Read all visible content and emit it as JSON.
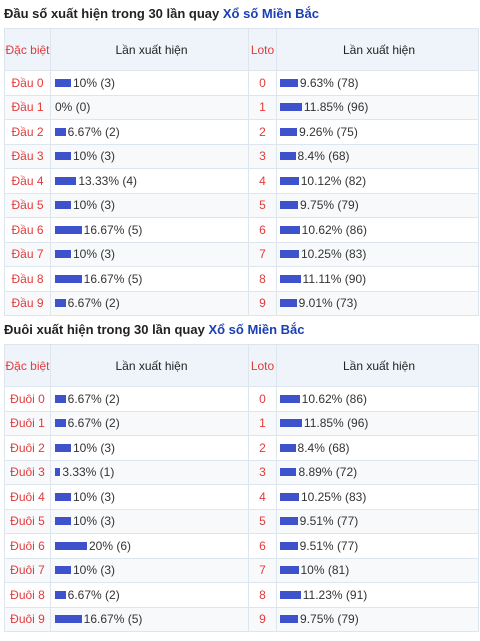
{
  "sections": [
    {
      "title_prefix": "Đầu số xuất hiện trong 30 lần quay",
      "title_link": "Xổ số Miền Bắc",
      "header": {
        "col1": "Đặc biệt",
        "col2": "Lần xuất hiện",
        "col3": "Loto",
        "col4": "Lần xuất hiện"
      },
      "rows": [
        {
          "label": "Đầu 0",
          "db_pct": 10,
          "db_text": "10% (3)",
          "loto": "0",
          "lt_pct": 9.63,
          "lt_text": "9.63% (78)"
        },
        {
          "label": "Đầu 1",
          "db_pct": 0,
          "db_text": "0% (0)",
          "loto": "1",
          "lt_pct": 11.85,
          "lt_text": "11.85% (96)"
        },
        {
          "label": "Đầu 2",
          "db_pct": 6.67,
          "db_text": "6.67% (2)",
          "loto": "2",
          "lt_pct": 9.26,
          "lt_text": "9.26% (75)"
        },
        {
          "label": "Đầu 3",
          "db_pct": 10,
          "db_text": "10% (3)",
          "loto": "3",
          "lt_pct": 8.4,
          "lt_text": "8.4% (68)"
        },
        {
          "label": "Đầu 4",
          "db_pct": 13.33,
          "db_text": "13.33% (4)",
          "loto": "4",
          "lt_pct": 10.12,
          "lt_text": "10.12% (82)"
        },
        {
          "label": "Đầu 5",
          "db_pct": 10,
          "db_text": "10% (3)",
          "loto": "5",
          "lt_pct": 9.75,
          "lt_text": "9.75% (79)"
        },
        {
          "label": "Đầu 6",
          "db_pct": 16.67,
          "db_text": "16.67% (5)",
          "loto": "6",
          "lt_pct": 10.62,
          "lt_text": "10.62% (86)"
        },
        {
          "label": "Đầu 7",
          "db_pct": 10,
          "db_text": "10% (3)",
          "loto": "7",
          "lt_pct": 10.25,
          "lt_text": "10.25% (83)"
        },
        {
          "label": "Đầu 8",
          "db_pct": 16.67,
          "db_text": "16.67% (5)",
          "loto": "8",
          "lt_pct": 11.11,
          "lt_text": "11.11% (90)"
        },
        {
          "label": "Đầu 9",
          "db_pct": 6.67,
          "db_text": "6.67% (2)",
          "loto": "9",
          "lt_pct": 9.01,
          "lt_text": "9.01% (73)"
        }
      ]
    },
    {
      "title_prefix": "Đuôi xuất hiện trong 30 lần quay",
      "title_link": "Xổ số Miền Bắc",
      "header": {
        "col1": "Đặc biệt",
        "col2": "Lần xuất hiện",
        "col3": "Loto",
        "col4": "Lần xuất hiện"
      },
      "rows": [
        {
          "label": "Đuôi 0",
          "db_pct": 6.67,
          "db_text": "6.67% (2)",
          "loto": "0",
          "lt_pct": 10.62,
          "lt_text": "10.62% (86)"
        },
        {
          "label": "Đuôi 1",
          "db_pct": 6.67,
          "db_text": "6.67% (2)",
          "loto": "1",
          "lt_pct": 11.85,
          "lt_text": "11.85% (96)"
        },
        {
          "label": "Đuôi 2",
          "db_pct": 10,
          "db_text": "10% (3)",
          "loto": "2",
          "lt_pct": 8.4,
          "lt_text": "8.4% (68)"
        },
        {
          "label": "Đuôi 3",
          "db_pct": 3.33,
          "db_text": "3.33% (1)",
          "loto": "3",
          "lt_pct": 8.89,
          "lt_text": "8.89% (72)"
        },
        {
          "label": "Đuôi 4",
          "db_pct": 10,
          "db_text": "10% (3)",
          "loto": "4",
          "lt_pct": 10.25,
          "lt_text": "10.25% (83)"
        },
        {
          "label": "Đuôi 5",
          "db_pct": 10,
          "db_text": "10% (3)",
          "loto": "5",
          "lt_pct": 9.51,
          "lt_text": "9.51% (77)"
        },
        {
          "label": "Đuôi 6",
          "db_pct": 20,
          "db_text": "20% (6)",
          "loto": "6",
          "lt_pct": 9.51,
          "lt_text": "9.51% (77)"
        },
        {
          "label": "Đuôi 7",
          "db_pct": 10,
          "db_text": "10% (3)",
          "loto": "7",
          "lt_pct": 10,
          "lt_text": "10% (81)"
        },
        {
          "label": "Đuôi 8",
          "db_pct": 6.67,
          "db_text": "6.67% (2)",
          "loto": "8",
          "lt_pct": 11.23,
          "lt_text": "11.23% (91)"
        },
        {
          "label": "Đuôi 9",
          "db_pct": 16.67,
          "db_text": "16.67% (5)",
          "loto": "9",
          "lt_pct": 9.75,
          "lt_text": "9.75% (79)"
        }
      ]
    }
  ],
  "colors": {
    "bar": "#3e52cc",
    "label": "#e23b3b",
    "link": "#1a3fb5"
  }
}
